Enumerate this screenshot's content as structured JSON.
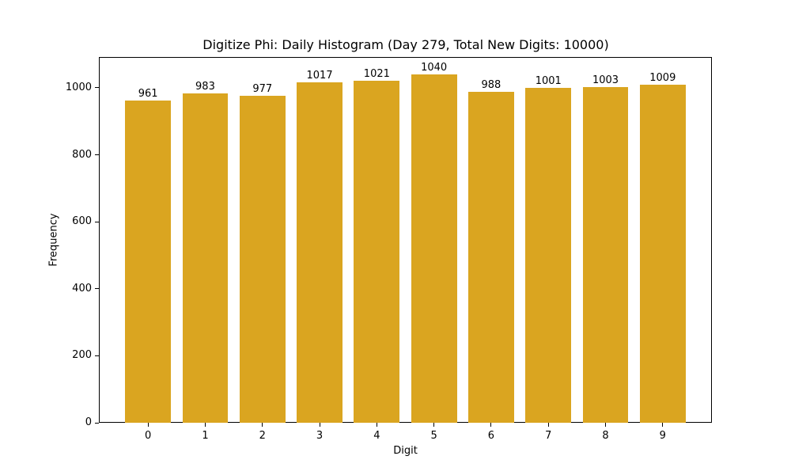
{
  "chart_data": {
    "type": "bar",
    "title": "Digitize Phi: Daily Histogram (Day 279, Total New Digits: 10000)",
    "xlabel": "Digit",
    "ylabel": "Frequency",
    "categories": [
      "0",
      "1",
      "2",
      "3",
      "4",
      "5",
      "6",
      "7",
      "8",
      "9"
    ],
    "values": [
      961,
      983,
      977,
      1017,
      1021,
      1040,
      988,
      1001,
      1003,
      1009
    ],
    "bar_labels": [
      "961",
      "983",
      "977",
      "1017",
      "1021",
      "1040",
      "988",
      "1001",
      "1003",
      "1009"
    ],
    "ylim": [
      0,
      1092
    ],
    "yticks": [
      0,
      200,
      400,
      600,
      800,
      1000
    ],
    "ytick_labels": [
      "0",
      "200",
      "400",
      "600",
      "800",
      "1000"
    ],
    "grid": false,
    "legend": null,
    "bar_color": "#DAA520"
  }
}
